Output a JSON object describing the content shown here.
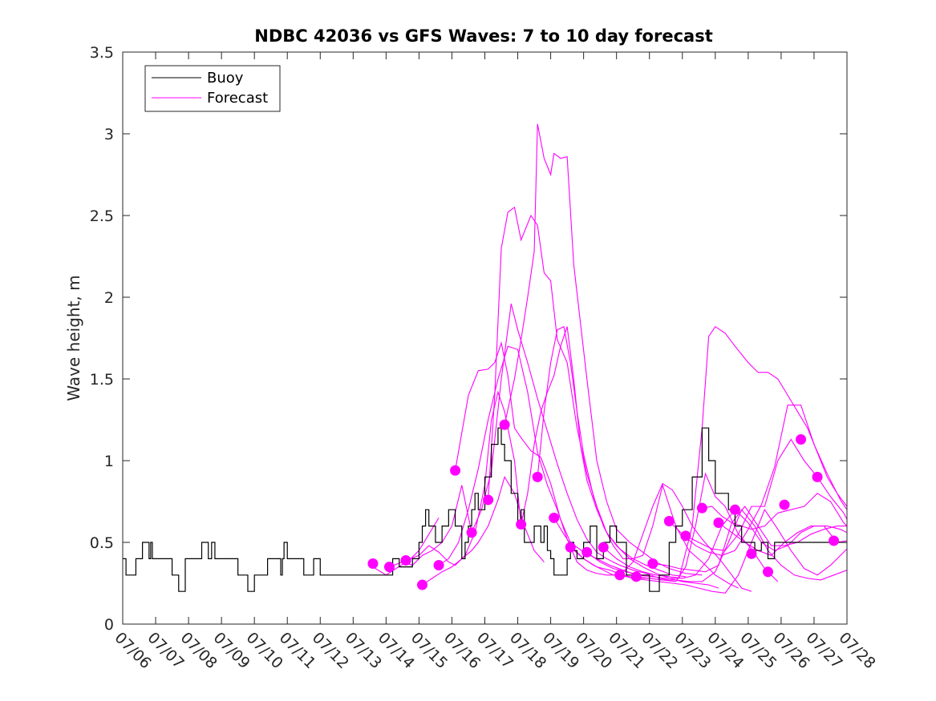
{
  "chart_data": {
    "type": "line",
    "title": "NDBC 42036 vs GFS Waves: 7 to 10 day forecast",
    "xlabel": "",
    "ylabel": "Wave height, m",
    "xlim": [
      0,
      22
    ],
    "ylim": [
      0,
      3.5
    ],
    "x_ticks": [
      "07/06",
      "07/07",
      "07/08",
      "07/09",
      "07/10",
      "07/11",
      "07/12",
      "07/13",
      "07/14",
      "07/15",
      "07/16",
      "07/17",
      "07/18",
      "07/19",
      "07/20",
      "07/21",
      "07/22",
      "07/23",
      "07/24",
      "07/25",
      "07/26",
      "07/27",
      "07/28"
    ],
    "y_ticks": [
      0,
      0.5,
      1,
      1.5,
      2,
      2.5,
      3,
      3.5
    ],
    "y_tick_labels": [
      "0",
      "0.5",
      "1",
      "1.5",
      "2",
      "2.5",
      "3",
      "3.5"
    ],
    "grid": false,
    "legend": {
      "placement": "top-left",
      "entries": [
        {
          "label": "Buoy",
          "color": "#000000"
        },
        {
          "label": "Forecast",
          "color": "#ff00ff"
        }
      ]
    },
    "colors": {
      "buoy": "#000000",
      "forecast": "#ff00ff"
    },
    "series": [
      {
        "name": "Buoy",
        "style": "step",
        "x": [
          0,
          0.1,
          0.4,
          0.6,
          0.8,
          0.85,
          0.9,
          0.95,
          1,
          1.5,
          1.7,
          1.9,
          2.4,
          2.6,
          2.7,
          2.8,
          2.9,
          3,
          3.5,
          3.8,
          4,
          4.4,
          4.7,
          4.8,
          4.85,
          4.9,
          5,
          5.2,
          5.5,
          5.8,
          6,
          6.5,
          7,
          7.5,
          8,
          8.2,
          8.4,
          8.8,
          9,
          9.1,
          9.2,
          9.3,
          9.5,
          9.7,
          9.9,
          10.1,
          10.3,
          10.4,
          10.5,
          10.6,
          10.7,
          10.8,
          11,
          11.2,
          11.4,
          11.5,
          11.6,
          11.8,
          12,
          12.1,
          12.2,
          12.5,
          12.7,
          12.8,
          12.9,
          13,
          13.1,
          13.2,
          13.4,
          13.5,
          13.6,
          13.7,
          13.8,
          14,
          14.2,
          14.4,
          14.6,
          14.8,
          15,
          15.3,
          15.6,
          16,
          16.3,
          16.6,
          16.8,
          17,
          17.3,
          17.6,
          17.8,
          18,
          18.4,
          18.6,
          18.8,
          19,
          19.2,
          19.4,
          19.6,
          19.8,
          20,
          20.3,
          20.6,
          20.9,
          21,
          21.3,
          21.5,
          21.7,
          21.85,
          22
        ],
        "y": [
          0.4,
          0.3,
          0.4,
          0.5,
          0.4,
          0.5,
          0.4,
          0.4,
          0.4,
          0.3,
          0.2,
          0.4,
          0.5,
          0.4,
          0.5,
          0.4,
          0.4,
          0.4,
          0.3,
          0.2,
          0.3,
          0.4,
          0.4,
          0.3,
          0.4,
          0.5,
          0.4,
          0.4,
          0.3,
          0.4,
          0.3,
          0.3,
          0.3,
          0.3,
          0.3,
          0.4,
          0.35,
          0.4,
          0.5,
          0.6,
          0.7,
          0.6,
          0.5,
          0.6,
          0.7,
          0.6,
          0.4,
          0.5,
          0.6,
          0.7,
          0.8,
          0.7,
          0.9,
          1.1,
          1.2,
          1.1,
          1.0,
          0.8,
          0.6,
          0.7,
          0.5,
          0.6,
          0.5,
          0.6,
          0.45,
          0.4,
          0.3,
          0.3,
          0.3,
          0.4,
          0.5,
          0.45,
          0.4,
          0.5,
          0.6,
          0.4,
          0.5,
          0.6,
          0.5,
          0.3,
          0.3,
          0.2,
          0.3,
          0.5,
          0.6,
          0.7,
          0.9,
          1.2,
          1.0,
          0.8,
          0.7,
          0.6,
          0.5,
          0.5,
          0.45,
          0.5,
          0.4,
          0.5,
          0.5,
          0.5,
          0.5,
          0.5,
          0.5,
          0.5,
          0.5,
          0.5,
          0.5,
          0.5
        ]
      },
      {
        "name": "",
        "x": [
          7.6,
          8.0,
          8.3,
          8.7,
          9.0,
          9.3,
          9.6
        ],
        "y": [
          0.35,
          0.3,
          0.34,
          0.39,
          0.45,
          0.55,
          0.65
        ]
      },
      {
        "name": "",
        "x": [
          8.1,
          8.5,
          8.8,
          9.1,
          9.4,
          9.7,
          10.0,
          10.3,
          10.6
        ],
        "y": [
          0.35,
          0.38,
          0.36,
          0.42,
          0.45,
          0.5,
          0.6,
          0.85,
          0.56
        ]
      },
      {
        "name": "",
        "x": [
          8.6,
          9.0,
          9.3,
          9.6,
          9.9,
          10.1,
          10.4,
          10.7,
          11.0,
          11.2,
          11.4,
          11.6,
          11.9,
          12.1
        ],
        "y": [
          0.39,
          0.42,
          0.48,
          0.44,
          0.38,
          0.36,
          0.42,
          0.56,
          0.85,
          1.25,
          1.42,
          1.3,
          1.0,
          0.61
        ]
      },
      {
        "name": "",
        "x": [
          9.1,
          9.4,
          9.7,
          10.0,
          10.3,
          10.6,
          10.8,
          11.1,
          11.4,
          11.6,
          11.9,
          12.2,
          12.5,
          12.8
        ],
        "y": [
          0.24,
          0.28,
          0.32,
          0.35,
          0.4,
          0.45,
          0.5,
          0.6,
          0.76,
          0.9,
          0.8,
          0.6,
          0.45,
          0.38
        ]
      },
      {
        "name": "",
        "x": [
          9.6,
          9.9,
          10.2,
          10.5,
          10.8,
          11.1,
          11.4,
          11.7,
          12.0,
          12.3,
          12.6,
          12.9,
          13.2,
          13.5,
          13.8,
          14.1,
          14.4,
          14.7,
          15.1
        ],
        "y": [
          0.36,
          0.4,
          0.5,
          0.7,
          0.95,
          1.25,
          1.5,
          1.7,
          1.68,
          1.42,
          1.05,
          0.85,
          0.7,
          0.52,
          0.38,
          0.33,
          0.31,
          0.3,
          0.3
        ]
      },
      {
        "name": "",
        "x": [
          10.1,
          10.5,
          10.8,
          11.1,
          11.3,
          11.5,
          11.7,
          11.9,
          12.1,
          12.4,
          12.7,
          13.0,
          13.3,
          13.6,
          14.0,
          14.4,
          14.8,
          15.2,
          15.6,
          16.1
        ],
        "y": [
          0.94,
          1.4,
          1.55,
          1.56,
          1.6,
          1.72,
          1.52,
          1.2,
          1.14,
          1.06,
          1.02,
          0.86,
          0.64,
          0.5,
          0.44,
          0.4,
          0.36,
          0.33,
          0.3,
          0.29
        ]
      },
      {
        "name": "",
        "x": [
          10.6,
          10.9,
          11.2,
          11.5,
          11.8,
          12.0,
          12.3,
          12.6,
          12.9,
          13.2,
          13.5,
          13.8,
          14.1,
          14.4,
          14.7,
          15.1,
          15.5,
          15.9,
          16.3,
          16.6
        ],
        "y": [
          0.56,
          0.7,
          0.94,
          1.5,
          1.96,
          1.8,
          1.6,
          1.38,
          1.18,
          0.98,
          0.8,
          0.64,
          0.52,
          0.44,
          0.4,
          0.36,
          0.33,
          0.31,
          0.28,
          0.27
        ]
      },
      {
        "name": "",
        "x": [
          11.1,
          11.3,
          11.5,
          11.7,
          11.9,
          12.1,
          12.4,
          12.6,
          12.8,
          13.0,
          13.2,
          13.5,
          13.8,
          14.1,
          14.4,
          14.7,
          15.1,
          15.5,
          15.9,
          16.3,
          16.7,
          17.1
        ],
        "y": [
          0.76,
          1.4,
          2.3,
          2.52,
          2.55,
          2.35,
          2.5,
          2.44,
          2.15,
          2.1,
          1.74,
          1.6,
          1.2,
          0.92,
          0.72,
          0.56,
          0.46,
          0.4,
          0.36,
          0.33,
          0.3,
          0.29
        ]
      },
      {
        "name": "",
        "x": [
          11.6,
          11.9,
          12.1,
          12.3,
          12.5,
          12.6,
          12.8,
          13.0,
          13.1,
          13.3,
          13.5,
          13.7,
          14.1,
          14.4,
          14.7,
          15.0,
          15.4,
          15.8,
          16.2,
          16.6,
          17.1,
          17.6
        ],
        "y": [
          1.22,
          1.5,
          1.74,
          2.0,
          2.28,
          3.06,
          2.85,
          2.75,
          2.88,
          2.85,
          2.86,
          2.2,
          1.5,
          1.0,
          0.75,
          0.58,
          0.5,
          0.44,
          0.38,
          0.34,
          0.31,
          0.3
        ]
      },
      {
        "name": "",
        "x": [
          12.1,
          12.3,
          12.5,
          12.7,
          12.9,
          13.1,
          13.3,
          13.5,
          13.7,
          13.9,
          14.1,
          14.4,
          14.7,
          15.0,
          15.4,
          15.8,
          16.2,
          16.6,
          17.0,
          17.4,
          17.8,
          18.1
        ],
        "y": [
          0.61,
          0.8,
          1.1,
          1.3,
          1.42,
          1.52,
          1.7,
          1.82,
          1.5,
          1.1,
          0.88,
          0.7,
          0.56,
          0.48,
          0.4,
          0.35,
          0.31,
          0.28,
          0.26,
          0.25,
          0.24,
          0.22
        ]
      },
      {
        "name": "",
        "x": [
          12.6,
          12.8,
          13.0,
          13.2,
          13.4,
          13.6,
          13.8,
          14.0,
          14.3,
          14.6,
          14.9,
          15.2,
          15.5,
          15.8,
          16.1,
          16.4,
          16.8,
          17.2,
          17.6,
          18.0,
          18.4,
          18.7
        ],
        "y": [
          0.9,
          1.3,
          1.6,
          1.8,
          1.82,
          1.6,
          1.3,
          1.04,
          0.78,
          0.6,
          0.48,
          0.4,
          0.4,
          0.42,
          0.6,
          0.85,
          0.6,
          0.45,
          0.38,
          0.3,
          0.25,
          0.22
        ]
      },
      {
        "name": "",
        "x": [
          13.1,
          13.4,
          13.7,
          14.0,
          14.3,
          14.6,
          14.9,
          15.2,
          15.5,
          15.8,
          16.1,
          16.4,
          16.7,
          17.0,
          17.3,
          17.6,
          17.9,
          18.2,
          18.5,
          18.8,
          19.1
        ],
        "y": [
          0.65,
          0.55,
          0.46,
          0.4,
          0.36,
          0.33,
          0.3,
          0.32,
          0.38,
          0.55,
          0.72,
          0.86,
          0.82,
          0.72,
          0.6,
          0.52,
          0.45,
          0.38,
          0.3,
          0.22,
          0.2
        ]
      },
      {
        "name": "",
        "x": [
          13.6,
          14.0,
          14.4,
          14.8,
          15.2,
          15.6,
          16.0,
          16.4,
          16.8,
          17.1,
          17.4,
          17.7,
          18.0,
          18.3,
          18.7,
          19.1,
          19.5,
          19.9
        ],
        "y": [
          0.47,
          0.4,
          0.35,
          0.33,
          0.3,
          0.28,
          0.28,
          0.27,
          0.26,
          0.35,
          0.6,
          0.92,
          0.78,
          0.72,
          0.55,
          0.46,
          0.34,
          0.26
        ]
      },
      {
        "name": "",
        "x": [
          14.1,
          14.5,
          14.9,
          15.3,
          15.7,
          16.1,
          16.5,
          16.9,
          17.3,
          17.6,
          17.8,
          18.0,
          18.3,
          18.6,
          19.0,
          19.3,
          19.6,
          19.9,
          20.2,
          20.5,
          20.8,
          21.1,
          21.4,
          21.7,
          22.0
        ],
        "y": [
          0.44,
          0.38,
          0.34,
          0.32,
          0.3,
          0.29,
          0.28,
          0.28,
          0.6,
          1.2,
          1.76,
          1.82,
          1.78,
          1.7,
          1.6,
          1.54,
          1.54,
          1.5,
          1.4,
          1.3,
          1.2,
          1.05,
          0.9,
          0.8,
          0.72
        ]
      },
      {
        "name": "",
        "x": [
          14.6,
          15.0,
          15.4,
          15.8,
          16.2,
          16.6,
          17.0,
          17.4,
          17.8,
          18.2,
          18.6,
          19.0,
          19.4,
          19.8,
          20.2,
          20.6,
          21.0,
          21.4,
          21.8,
          22.0
        ],
        "y": [
          0.47,
          0.4,
          0.35,
          0.32,
          0.3,
          0.29,
          0.28,
          0.3,
          0.4,
          0.6,
          0.7,
          0.62,
          0.5,
          0.45,
          0.48,
          0.56,
          0.6,
          0.6,
          0.58,
          0.56
        ]
      },
      {
        "name": "",
        "x": [
          15.1,
          15.5,
          15.9,
          16.3,
          16.7,
          17.1,
          17.5,
          17.9,
          18.3,
          18.7,
          19.1,
          19.5,
          19.9,
          20.3,
          20.7,
          21.1,
          21.5,
          21.9,
          22.0
        ],
        "y": [
          0.3,
          0.28,
          0.27,
          0.26,
          0.25,
          0.24,
          0.22,
          0.2,
          0.19,
          0.3,
          0.5,
          0.7,
          0.58,
          0.45,
          0.34,
          0.3,
          0.36,
          0.44,
          0.46
        ]
      },
      {
        "name": "",
        "x": [
          15.6,
          16.0,
          16.4,
          16.8,
          17.2,
          17.6,
          18.0,
          18.4,
          18.8,
          19.2,
          19.6,
          20.0,
          20.4,
          20.8,
          21.2,
          21.6,
          22.0
        ],
        "y": [
          0.29,
          0.28,
          0.27,
          0.27,
          0.26,
          0.26,
          0.32,
          0.5,
          0.7,
          0.6,
          0.45,
          0.36,
          0.3,
          0.28,
          0.27,
          0.3,
          0.33
        ]
      },
      {
        "name": "",
        "x": [
          16.1,
          16.5,
          16.9,
          17.3,
          17.7,
          18.1,
          18.5,
          18.9,
          19.3,
          19.7,
          20.1,
          20.5,
          20.9,
          21.3,
          21.7,
          22.0
        ],
        "y": [
          0.37,
          0.36,
          0.34,
          0.33,
          0.32,
          0.36,
          0.62,
          0.72,
          0.6,
          0.48,
          0.48,
          0.5,
          0.55,
          0.58,
          0.6,
          0.6
        ]
      },
      {
        "name": "",
        "x": [
          16.6,
          17.0,
          17.4,
          17.8,
          18.2,
          18.6,
          19.0,
          19.4,
          19.8,
          20.2,
          20.6,
          21.0,
          21.4,
          21.8,
          22.0
        ],
        "y": [
          0.63,
          0.55,
          0.48,
          0.44,
          0.42,
          0.45,
          0.58,
          0.73,
          0.96,
          1.34,
          1.34,
          1.1,
          0.92,
          0.76,
          0.7
        ]
      },
      {
        "name": "",
        "x": [
          17.1,
          17.5,
          17.9,
          18.3,
          18.7,
          19.1,
          19.5,
          19.9,
          20.3,
          20.7,
          21.1,
          21.5,
          21.9,
          22.0
        ],
        "y": [
          0.54,
          0.5,
          0.46,
          0.45,
          0.55,
          0.72,
          0.72,
          1.0,
          1.13,
          1.0,
          0.9,
          0.78,
          0.68,
          0.64
        ]
      },
      {
        "name": "",
        "x": [
          17.6,
          17.9,
          18.2,
          18.5,
          18.8,
          19.1,
          19.5,
          19.9,
          20.3,
          20.7,
          21.1,
          21.5,
          21.9,
          22.0
        ],
        "y": [
          0.71,
          0.72,
          0.66,
          0.62,
          0.6,
          0.58,
          0.6,
          0.68,
          0.7,
          0.72,
          0.8,
          0.75,
          0.62,
          0.6
        ]
      },
      {
        "name": "",
        "x": [
          18.1,
          18.5,
          18.9,
          19.3,
          19.7,
          20.1,
          20.5,
          20.9,
          21.3,
          21.7,
          22.0
        ],
        "y": [
          0.62,
          0.56,
          0.5,
          0.45,
          0.42,
          0.5,
          0.56,
          0.6,
          0.6,
          0.5,
          0.51
        ]
      }
    ],
    "markers": {
      "name": "forecast-issue-points",
      "x": [
        7.6,
        8.1,
        8.6,
        9.1,
        9.6,
        10.1,
        10.6,
        11.1,
        11.6,
        12.1,
        12.6,
        13.1,
        13.6,
        14.1,
        14.6,
        15.1,
        15.6,
        16.1,
        16.6,
        17.1,
        17.6,
        18.1,
        18.6,
        19.1,
        19.6,
        20.1,
        20.6,
        21.1,
        21.6
      ],
      "y": [
        0.37,
        0.35,
        0.39,
        0.24,
        0.36,
        0.94,
        0.56,
        0.76,
        1.22,
        0.61,
        0.9,
        0.65,
        0.47,
        0.44,
        0.47,
        0.3,
        0.29,
        0.37,
        0.63,
        0.54,
        0.71,
        0.62,
        0.7,
        0.43,
        0.32,
        0.73,
        1.13,
        0.9,
        0.51
      ]
    }
  }
}
